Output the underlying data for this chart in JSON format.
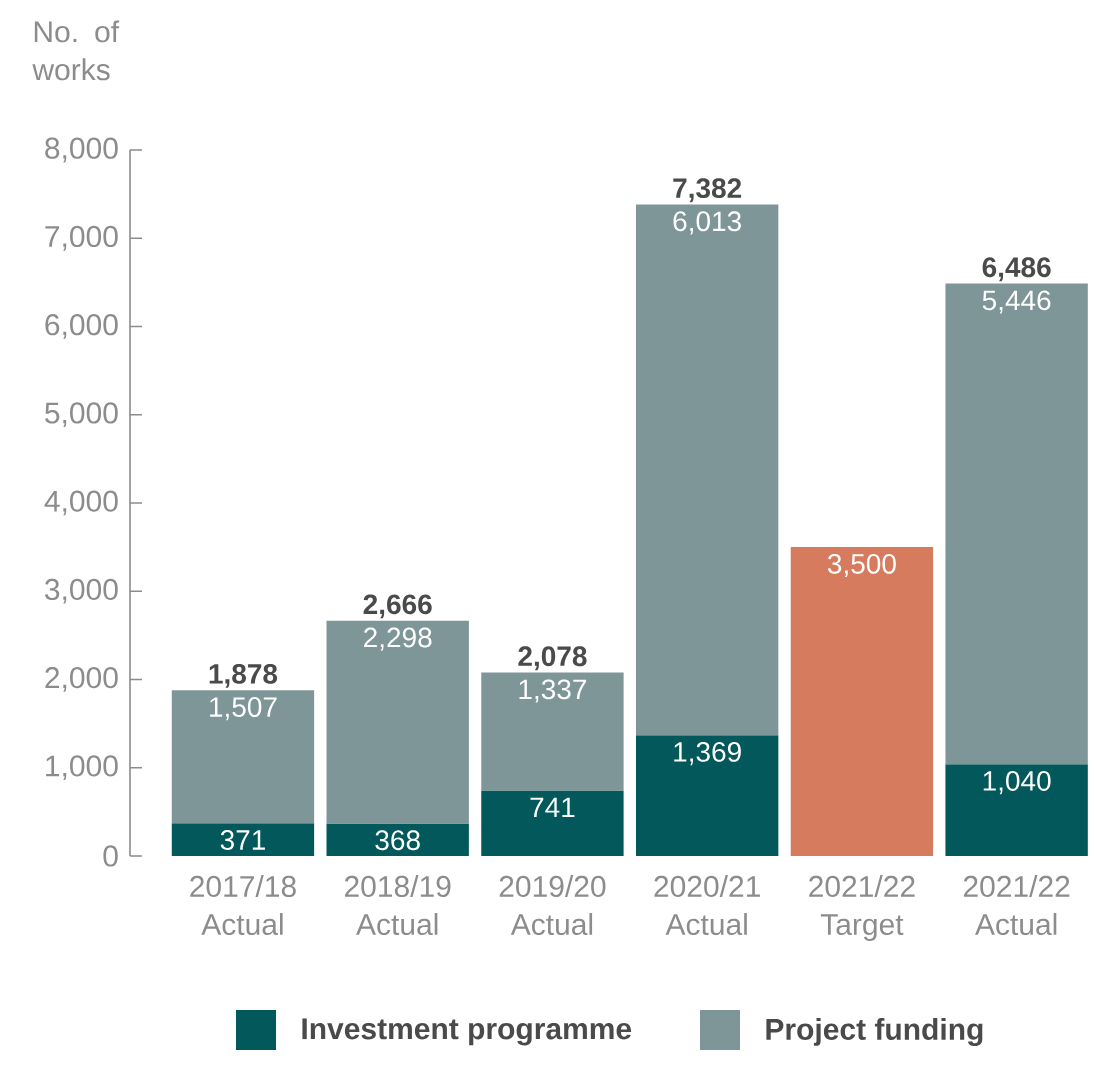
{
  "chart_data": {
    "type": "bar",
    "stacked": true,
    "ylabel": "No. of works",
    "categories": [
      "2017/18 Actual",
      "2018/19 Actual",
      "2019/20 Actual",
      "2020/21 Actual",
      "2021/22 Target",
      "2021/22 Actual"
    ],
    "series": [
      {
        "name": "Investment programme",
        "color": "#02585a",
        "values": [
          371,
          368,
          741,
          1369,
          null,
          1040
        ],
        "value_labels": [
          "371",
          "368",
          "741",
          "1,369",
          null,
          "1,040"
        ]
      },
      {
        "name": "Project funding",
        "color": "#7f9698",
        "values": [
          1507,
          2298,
          1337,
          6013,
          null,
          5446
        ],
        "value_labels": [
          "1,507",
          "2,298",
          "1,337",
          "6,013",
          null,
          "5,446"
        ]
      },
      {
        "color": "#d77b5f",
        "values": [
          null,
          null,
          null,
          null,
          3500,
          null
        ],
        "value_labels": [
          null,
          null,
          null,
          null,
          "3,500",
          null
        ]
      }
    ],
    "totals": [
      "1,878",
      "2,666",
      "2,078",
      "7,382",
      null,
      "6,486"
    ],
    "ylim": [
      0,
      8000
    ],
    "yticks": [
      {
        "value": 0,
        "label": "0"
      },
      {
        "value": 1000,
        "label": "1,000"
      },
      {
        "value": 2000,
        "label": "2,000"
      },
      {
        "value": 3000,
        "label": "3,000"
      },
      {
        "value": 4000,
        "label": "4,000"
      },
      {
        "value": 5000,
        "label": "5,000"
      },
      {
        "value": 6000,
        "label": "6,000"
      },
      {
        "value": 7000,
        "label": "7,000"
      },
      {
        "value": 8000,
        "label": "8,000"
      }
    ],
    "legend": "bottom"
  }
}
